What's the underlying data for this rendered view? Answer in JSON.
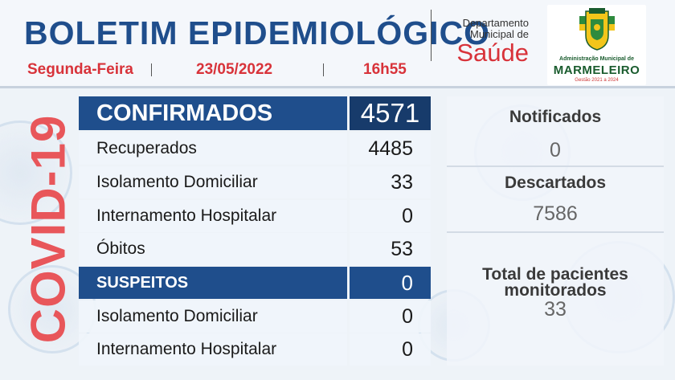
{
  "header": {
    "title": "BOLETIM EPIDEMIOLÓGICO",
    "day": "Segunda-Feira",
    "date": "23/05/2022",
    "time": "16h55",
    "dept_line1": "Departamento",
    "dept_line2": "Municipal de",
    "dept_saude": "Saúde",
    "logo_admin": "Administração Municipal de",
    "logo_city": "MARMELEIRO",
    "logo_term": "Gestão 2021 a 2024"
  },
  "side_label": "COVID-19",
  "confirmados": {
    "label": "CONFIRMADOS",
    "value": "4571",
    "rows": [
      {
        "label": "Recuperados",
        "value": "4485"
      },
      {
        "label": "Isolamento Domiciliar",
        "value": "33"
      },
      {
        "label": "Internamento Hospitalar",
        "value": "0"
      },
      {
        "label": "Óbitos",
        "value": "53"
      }
    ]
  },
  "suspeitos": {
    "label": "SUSPEITOS",
    "value": "0",
    "rows": [
      {
        "label": "Isolamento Domiciliar",
        "value": "0"
      },
      {
        "label": "Internamento Hospitalar",
        "value": "0"
      }
    ]
  },
  "stats": {
    "notificados_label": "Notificados",
    "notificados_value": "0",
    "descartados_label": "Descartados",
    "descartados_value": "7586",
    "monitorados_label_1": "Total de pacientes",
    "monitorados_label_2": "monitorados",
    "monitorados_value": "33"
  },
  "colors": {
    "title_blue": "#1f4e8c",
    "accent_red": "#d8333a",
    "covid_red": "#e8565a"
  }
}
